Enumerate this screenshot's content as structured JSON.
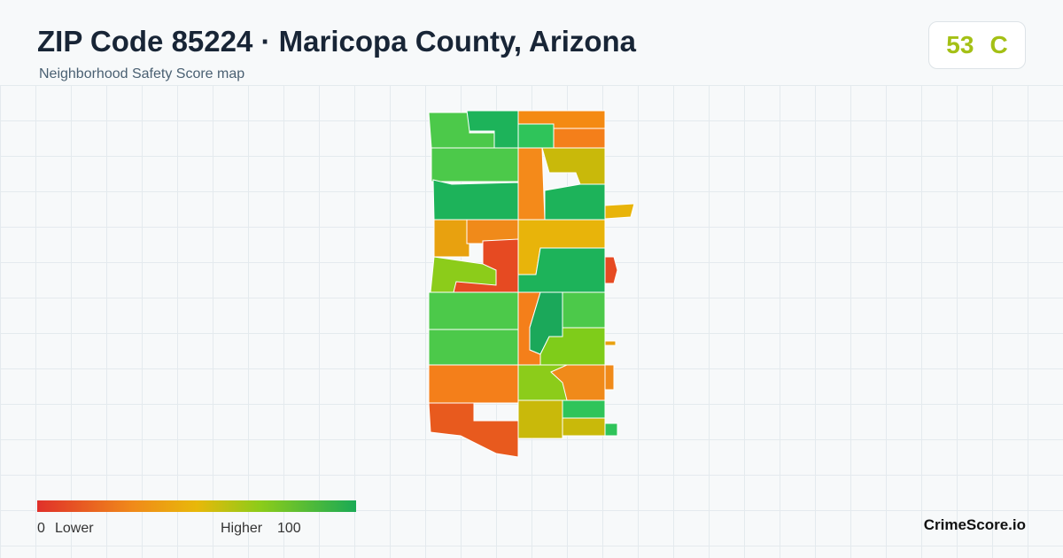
{
  "header": {
    "title": "ZIP Code 85224 · Maricopa County, Arizona",
    "subtitle": "Neighborhood Safety Score map"
  },
  "score": {
    "value": 53,
    "grade": "C"
  },
  "legend": {
    "min": 0,
    "min_label": "Lower",
    "max_label": "Higher",
    "max": 100
  },
  "brand": "CrimeScore.io"
}
